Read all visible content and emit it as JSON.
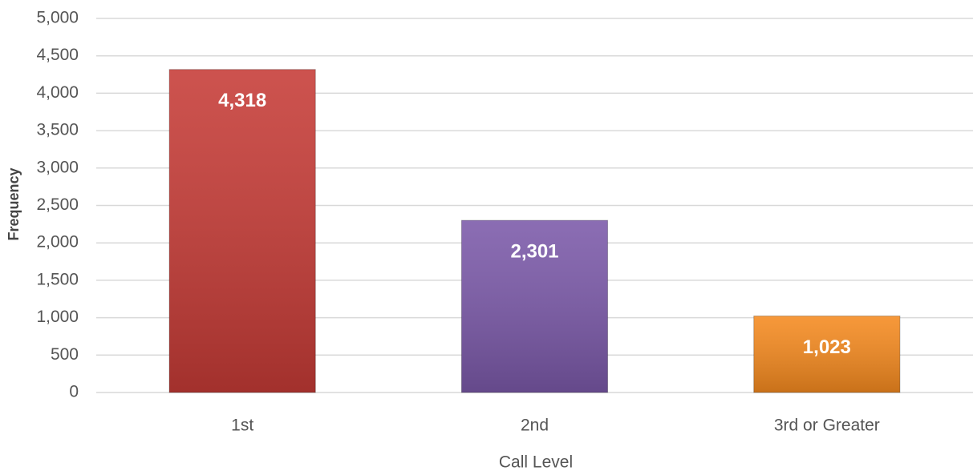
{
  "chart_data": {
    "type": "bar",
    "x_label": "Call Level",
    "y_label": "Frequency",
    "categories": [
      "1st",
      "2nd",
      "3rd or Greater"
    ],
    "values": [
      4318,
      2301,
      1023
    ],
    "value_labels": [
      "4,318",
      "2,301",
      "1,023"
    ],
    "colors": [
      "#c63b36",
      "#7b59a9",
      "#f58a1f"
    ],
    "ylim": [
      0,
      5000
    ],
    "yticks": [
      0,
      500,
      {
        "value": 1000,
        "label": "1,000"
      },
      {
        "value": 1500,
        "label": "1,500"
      },
      {
        "value": 2000,
        "label": "2,000"
      },
      {
        "value": 2500,
        "label": "2,500"
      },
      {
        "value": 3000,
        "label": "3,000"
      },
      {
        "value": 3500,
        "label": "3,500"
      },
      {
        "value": 4000,
        "label": "4,000"
      },
      {
        "value": 4500,
        "label": "4,500"
      },
      {
        "value": 5000,
        "label": "5,000"
      }
    ],
    "grid": true
  }
}
